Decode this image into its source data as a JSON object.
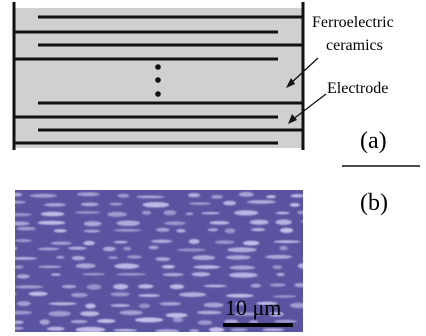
{
  "labels": {
    "ceramics_line1": "Ferroelectric",
    "ceramics_line2": "ceramics",
    "electrode": "Electrode",
    "panel_a": "(a)",
    "panel_b": "(b)",
    "scale_bar": "10 μm"
  },
  "diagram": {
    "dots": "⋮"
  },
  "colors": {
    "ceramic_fill": "#d0d0d0",
    "electrode_line": "#111111",
    "micrograph_base": "#5a54a0",
    "micrograph_grain": "#c9c6ee"
  }
}
